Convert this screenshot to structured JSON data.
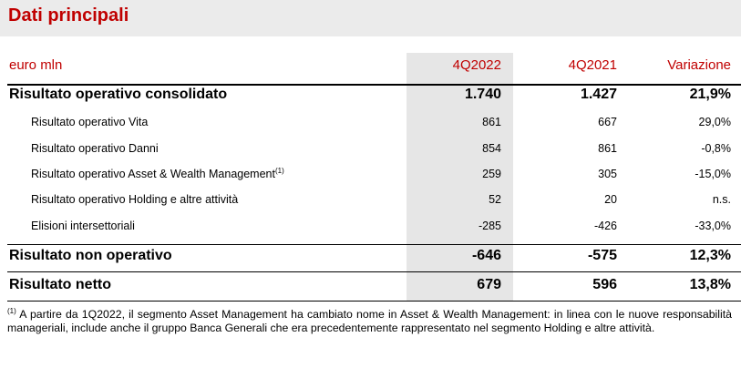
{
  "title": "Dati principali",
  "header": {
    "unit": "euro mln",
    "col1": "4Q2022",
    "col2": "4Q2021",
    "col3": "Variazione"
  },
  "rows": [
    {
      "label": "Risultato operativo consolidato",
      "v1": "1.740",
      "v2": "1.427",
      "v3": "21,9%"
    },
    {
      "label": "Risultato operativo Vita",
      "v1": "861",
      "v2": "667",
      "v3": "29,0%"
    },
    {
      "label": "Risultato operativo Danni",
      "v1": "854",
      "v2": "861",
      "v3": "-0,8%"
    },
    {
      "label": "Risultato operativo Asset & Wealth Management",
      "note": "(1)",
      "v1": "259",
      "v2": "305",
      "v3": "-15,0%"
    },
    {
      "label": "Risultato operativo Holding e altre attività",
      "v1": "52",
      "v2": "20",
      "v3": "n.s."
    },
    {
      "label": "Elisioni intersettoriali",
      "v1": "-285",
      "v2": "-426",
      "v3": "-33,0%"
    },
    {
      "label": "Risultato non operativo",
      "v1": "-646",
      "v2": "-575",
      "v3": "12,3%"
    },
    {
      "label": "Risultato netto",
      "v1": "679",
      "v2": "596",
      "v3": "13,8%"
    }
  ],
  "footnote": {
    "mark": "(1)",
    "text": " A partire da 1Q2022, il segmento Asset Management ha cambiato nome in Asset & Wealth Management: in linea con le nuove responsabilità manageriali, include anche il gruppo Banca Generali che era precedentemente rappresentato nel segmento Holding e altre attività."
  }
}
